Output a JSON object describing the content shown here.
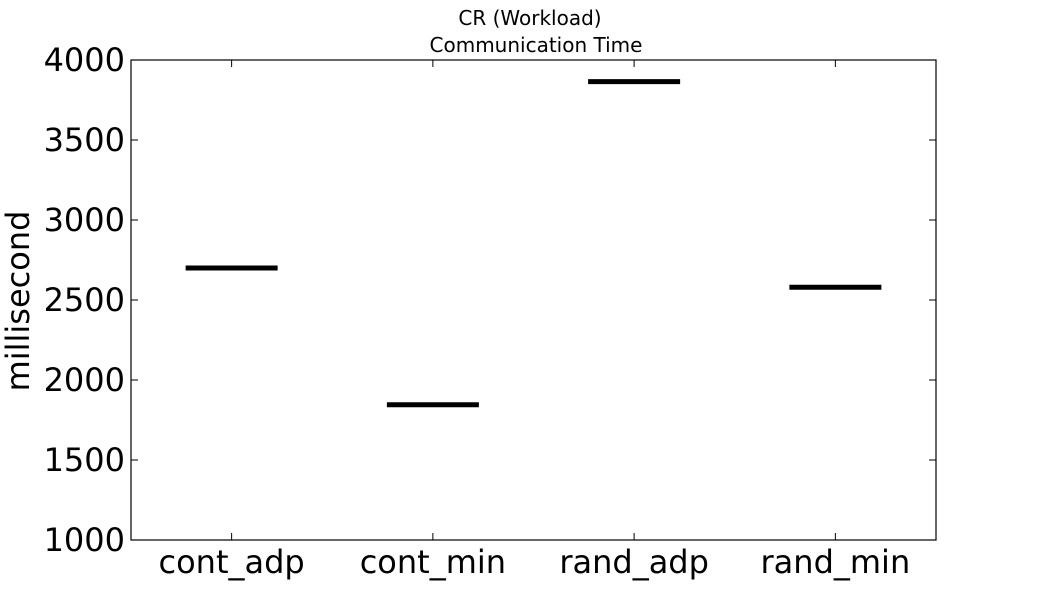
{
  "chart_data": {
    "type": "line",
    "title": "CR (Workload)",
    "subtitle": "Communication Time",
    "xlabel": "",
    "ylabel": "millisecond",
    "categories": [
      "cont_adp",
      "cont_min",
      "rand_adp",
      "rand_min"
    ],
    "values": [
      2700,
      1845,
      3865,
      2580
    ],
    "ylim": [
      1000,
      4000
    ],
    "yticks": [
      1000,
      1500,
      2000,
      2500,
      3000,
      3500,
      4000
    ],
    "grid": false,
    "colors": {
      "mark": "#000000",
      "axes": "#000000"
    }
  }
}
